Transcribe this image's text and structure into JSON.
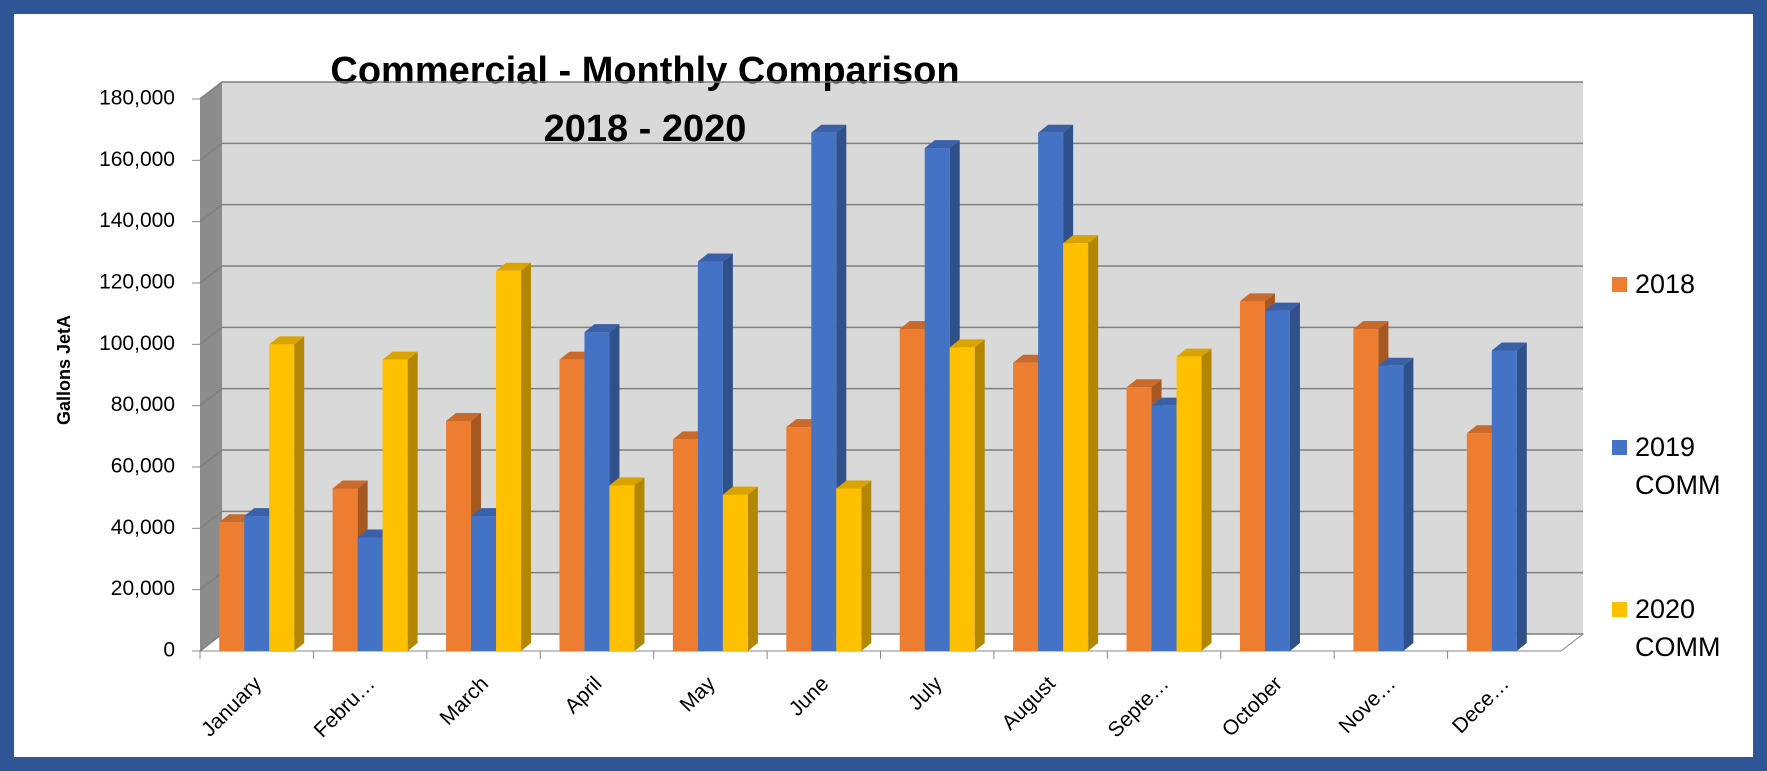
{
  "chart_data": {
    "type": "bar3d",
    "title": "Commercial - Monthly Comparison",
    "subtitle": "2018 - 2020",
    "y_label": "Gallons JetA",
    "categories": [
      "January",
      "Febru…",
      "March",
      "April",
      "May",
      "June",
      "July",
      "August",
      "Septe…",
      "October",
      "Nove…",
      "Dece…"
    ],
    "series": [
      {
        "name": "2018",
        "color": "#ed7d31",
        "values": [
          42000,
          53000,
          75000,
          95000,
          69000,
          73000,
          105000,
          94000,
          86000,
          114000,
          105000,
          71000
        ]
      },
      {
        "name": "2019 COMM",
        "color": "#4472c4",
        "values": [
          44000,
          37000,
          44000,
          104000,
          127000,
          169000,
          164000,
          169000,
          80000,
          111000,
          93000,
          98000
        ]
      },
      {
        "name": "2020 COMM",
        "color": "#ffc000",
        "values": [
          100000,
          95000,
          124000,
          54000,
          51000,
          53000,
          99000,
          133000,
          96000,
          null,
          null,
          null
        ]
      }
    ],
    "ylim": [
      0,
      180000
    ],
    "yticks": [
      0,
      {
        "value": 20000,
        "label": "20,000"
      },
      {
        "value": 40000,
        "label": "40,000"
      },
      {
        "value": 60000,
        "label": "60,000"
      },
      {
        "value": 80000,
        "label": "80,000"
      },
      {
        "value": 100000,
        "label": "100,000"
      },
      {
        "value": 120000,
        "label": "120,000"
      },
      {
        "value": 140000,
        "label": "140,000"
      },
      {
        "value": 160000,
        "label": "160,000"
      },
      {
        "value": 180000,
        "label": "180,000"
      }
    ],
    "grid": true,
    "legend": "right"
  }
}
